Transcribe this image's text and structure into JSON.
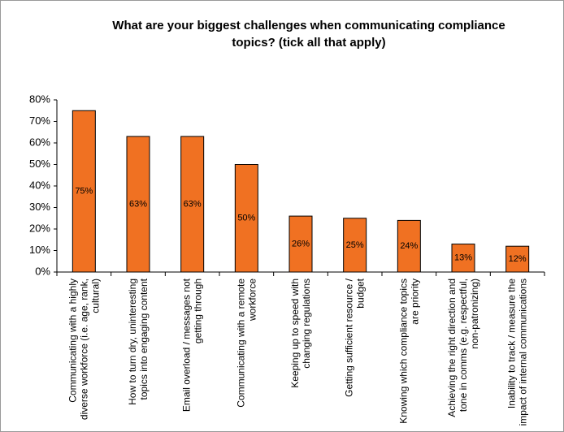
{
  "chart_data": {
    "type": "bar",
    "title": [
      "What are your biggest challenges when communicating compliance",
      "topics? (tick all that apply)"
    ],
    "categories": [
      "Communicating with a highly diverse workforce (i.e. age, rank, cultural)",
      "How to turn dry, uninteresting topics into engaging content",
      "Email overload / messages not getting through",
      "Communicating with a remote workforce",
      "Keeping up to speed with changing regulations",
      "Getting sufficient resource / budget",
      "Knowing which compliance topics are priority",
      "Achieving the right direction and tone in comms (e.g. respectful, non-patronizing)",
      "Inability to track / measure the impact of internal communications"
    ],
    "values": [
      75,
      63,
      63,
      50,
      26,
      25,
      24,
      13,
      12
    ],
    "value_labels": [
      "75%",
      "63%",
      "63%",
      "50%",
      "26%",
      "25%",
      "24%",
      "13%",
      "12%"
    ],
    "color": "#f07122",
    "ylim": [
      0,
      80
    ],
    "yticks": [
      {
        "value": 0,
        "label": "0%"
      },
      {
        "value": 10,
        "label": "10%"
      },
      {
        "value": 20,
        "label": "20%"
      },
      {
        "value": 30,
        "label": "30%"
      },
      {
        "value": 40,
        "label": "40%"
      },
      {
        "value": 50,
        "label": "50%"
      },
      {
        "value": 60,
        "label": "60%"
      },
      {
        "value": 70,
        "label": "70%"
      },
      {
        "value": 80,
        "label": "80%"
      }
    ],
    "grid": false
  }
}
